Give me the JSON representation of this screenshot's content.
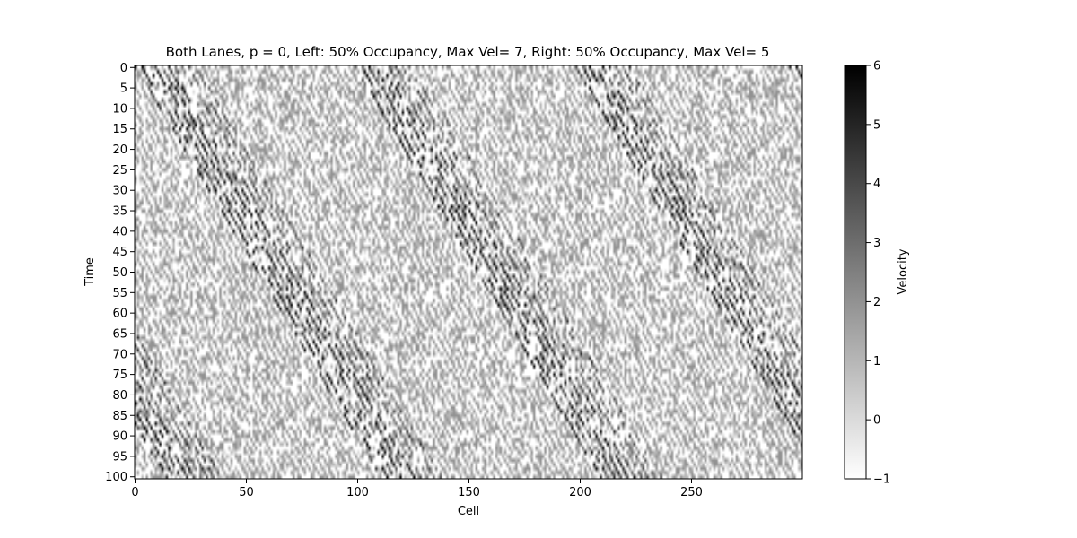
{
  "chart_data": {
    "type": "heatmap",
    "title": "Both Lanes, p = 0, Left: 50% Occupancy, Max Vel= 7, Right: 50% Occupancy, Max Vel= 5",
    "xlabel": "Cell",
    "ylabel": "Time",
    "x_range": [
      0,
      300
    ],
    "y_range": [
      0,
      101
    ],
    "x_ticks": [
      0,
      50,
      100,
      150,
      200,
      250
    ],
    "y_ticks": [
      0,
      5,
      10,
      15,
      20,
      25,
      30,
      35,
      40,
      45,
      50,
      55,
      60,
      65,
      70,
      75,
      80,
      85,
      90,
      95,
      100
    ],
    "y_inverted": true,
    "colormap": "Greys",
    "colorbar": {
      "label": "Velocity",
      "range": [
        -1,
        6
      ],
      "ticks": [
        -1,
        0,
        1,
        2,
        3,
        4,
        5,
        6
      ]
    },
    "pattern": {
      "description_values": "space-time diagram of cellular automaton traffic; diagonal bands of moving vehicles",
      "band_slope_cells_per_step": 1.1,
      "dark_band_period_cells": 98
    }
  }
}
